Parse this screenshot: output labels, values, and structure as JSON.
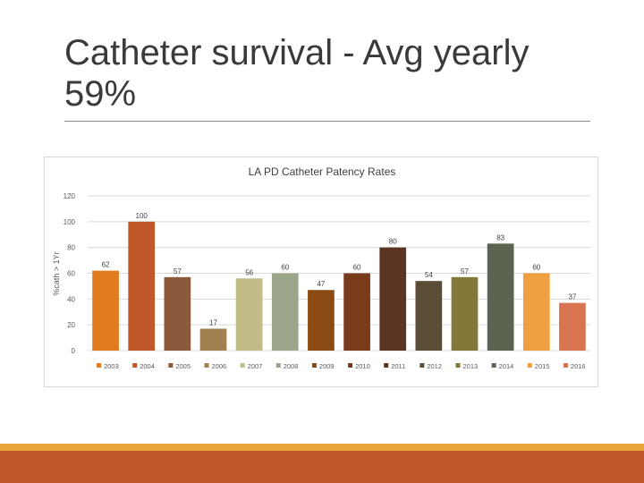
{
  "slide": {
    "title": "Catheter survival - Avg yearly\n59%"
  },
  "colors": {
    "accent": "#c0582a",
    "accent_light": "#e8a33a"
  },
  "chart_data": {
    "type": "bar",
    "title": "LA PD Catheter Patency Rates",
    "xlabel": "",
    "ylabel": "%cath > 1Yr",
    "ylim": [
      0,
      120
    ],
    "yticks": [
      0,
      20,
      40,
      60,
      80,
      100,
      120
    ],
    "grid": true,
    "legend_position": "bottom",
    "categories": [
      "2003",
      "2004",
      "2005",
      "2006",
      "2007",
      "2008",
      "2009",
      "2010",
      "2011",
      "2012",
      "2013",
      "2014",
      "2015",
      "2016"
    ],
    "values": [
      62,
      100,
      57,
      17,
      56,
      60,
      47,
      60,
      80,
      54,
      57,
      83,
      60,
      37
    ],
    "data_labels": [
      "62",
      "100",
      "57",
      "17",
      "56",
      "60",
      "47",
      "60",
      "80",
      "54",
      "57",
      "83",
      "60",
      "37"
    ],
    "colors": [
      "#e07b20",
      "#c0582a",
      "#8b5a3c",
      "#a0814f",
      "#c2bd86",
      "#9aa58a",
      "#8b4a12",
      "#7a3a1c",
      "#5a3522",
      "#5c4e36",
      "#827838",
      "#5a6450",
      "#f0a040",
      "#d97450"
    ]
  }
}
